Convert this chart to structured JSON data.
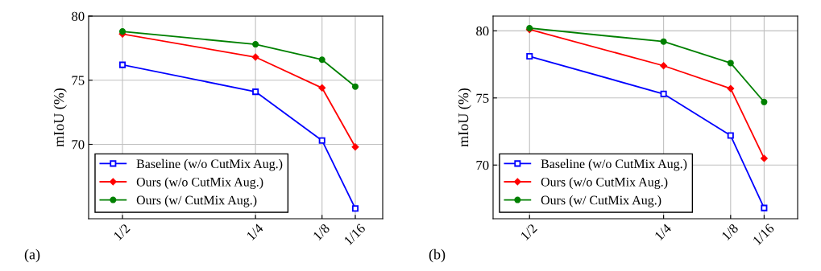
{
  "chart_data": [
    {
      "type": "line",
      "ylabel": "mIoU (%)",
      "annotations": [
        "(a)"
      ],
      "x": [
        0.5,
        0.25,
        0.125,
        0.0625
      ],
      "xlim": [
        0.5636,
        0.011
      ],
      "xticks": [
        {
          "value": 0.5,
          "label": "1/2"
        },
        {
          "value": 0.25,
          "label": "1/4"
        },
        {
          "value": 0.125,
          "label": "1/8"
        },
        {
          "value": 0.0625,
          "label": "1/16"
        }
      ],
      "ylim": [
        64.2,
        80
      ],
      "yticks": [
        70,
        75,
        80
      ],
      "grid": true,
      "legend": "bottom left",
      "series": [
        {
          "name": "Baseline (w/o CutMix Aug.)",
          "color": "#0000ff",
          "marker": "square",
          "values": [
            76.2,
            74.1,
            70.3,
            65.0
          ]
        },
        {
          "name": "Ours (w/o CutMix Aug.)",
          "color": "#ff0000",
          "marker": "diamond",
          "values": [
            78.6,
            76.8,
            74.4,
            69.8
          ]
        },
        {
          "name": "Ours (w/ CutMix Aug.)",
          "color": "#008000",
          "marker": "circle",
          "values": [
            78.8,
            77.8,
            76.6,
            74.5
          ]
        }
      ]
    },
    {
      "type": "line",
      "ylabel": "mIoU (%)",
      "annotations": [
        "(b)"
      ],
      "x": [
        0.5,
        0.25,
        0.125,
        0.0625
      ],
      "xlim": [
        0.568,
        0.0
      ],
      "xticks": [
        {
          "value": 0.5,
          "label": "1/2"
        },
        {
          "value": 0.25,
          "label": "1/4"
        },
        {
          "value": 0.125,
          "label": "1/8"
        },
        {
          "value": 0.0625,
          "label": "1/16"
        }
      ],
      "ylim": [
        66.0,
        81.1
      ],
      "yticks": [
        70,
        75,
        80
      ],
      "grid": true,
      "legend": "bottom left",
      "series": [
        {
          "name": "Baseline (w/o CutMix Aug.)",
          "color": "#0000ff",
          "marker": "square",
          "values": [
            78.1,
            75.3,
            72.2,
            66.8
          ]
        },
        {
          "name": "Ours (w/o CutMix Aug.)",
          "color": "#ff0000",
          "marker": "diamond",
          "values": [
            80.1,
            77.4,
            75.7,
            70.5
          ]
        },
        {
          "name": "Ours (w/ CutMix Aug.)",
          "color": "#008000",
          "marker": "circle",
          "values": [
            80.2,
            79.2,
            77.6,
            74.7
          ]
        }
      ]
    }
  ]
}
